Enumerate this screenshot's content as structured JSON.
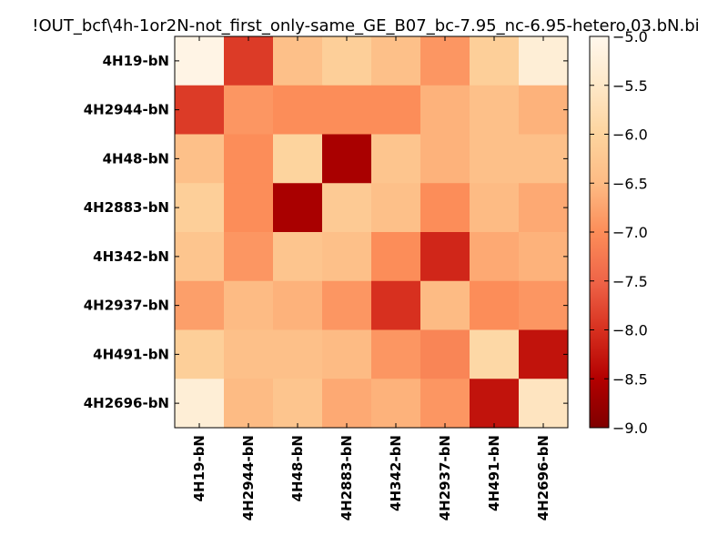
{
  "chart_data": {
    "type": "heatmap",
    "title": "!OUT_bcf\\4h-1or2N-not_first_only-same_GE_B07_bc-7.95_nc-6.95-hetero.03.bN.bi",
    "rows": [
      "4H19-bN",
      "4H2944-bN",
      "4H48-bN",
      "4H2883-bN",
      "4H342-bN",
      "4H2937-bN",
      "4H491-bN",
      "4H2696-bN"
    ],
    "cols": [
      "4H19-bN",
      "4H2944-bN",
      "4H48-bN",
      "4H2883-bN",
      "4H342-bN",
      "4H2937-bN",
      "4H491-bN",
      "4H2696-bN"
    ],
    "values": [
      [
        -5.1,
        -7.9,
        -6.4,
        -6.1,
        -6.4,
        -6.9,
        -6.1,
        -5.3
      ],
      [
        -7.9,
        -6.9,
        -7.0,
        -7.0,
        -7.0,
        -6.6,
        -6.4,
        -6.6
      ],
      [
        -6.4,
        -7.0,
        -6.0,
        -8.6,
        -6.3,
        -6.6,
        -6.4,
        -6.4
      ],
      [
        -6.1,
        -7.0,
        -8.6,
        -6.2,
        -6.4,
        -7.0,
        -6.5,
        -6.7
      ],
      [
        -6.3,
        -6.9,
        -6.3,
        -6.4,
        -7.0,
        -8.1,
        -6.7,
        -6.6
      ],
      [
        -6.8,
        -6.5,
        -6.6,
        -6.9,
        -8.0,
        -6.5,
        -7.0,
        -6.9
      ],
      [
        -6.1,
        -6.4,
        -6.4,
        -6.5,
        -6.9,
        -7.1,
        -5.9,
        -8.3
      ],
      [
        -5.3,
        -6.5,
        -6.3,
        -6.7,
        -6.6,
        -6.9,
        -8.3,
        -5.6
      ]
    ],
    "colorbar": {
      "vmin": -9.0,
      "vmax": -5.0,
      "ticks": [
        -5.0,
        -5.5,
        -6.0,
        -6.5,
        -7.0,
        -7.5,
        -8.0,
        -8.5,
        -9.0
      ],
      "tick_labels": [
        "−5.0",
        "−5.5",
        "−6.0",
        "−6.5",
        "−7.0",
        "−7.5",
        "−8.0",
        "−8.5",
        "−9.0"
      ],
      "colormap": "OrRd reversed",
      "stops": [
        "#7f0000",
        "#b30000",
        "#d7301f",
        "#ef6548",
        "#fc8d59",
        "#fdbb84",
        "#fdd49e",
        "#fee8c8",
        "#fff7ec"
      ]
    },
    "grid": false
  }
}
